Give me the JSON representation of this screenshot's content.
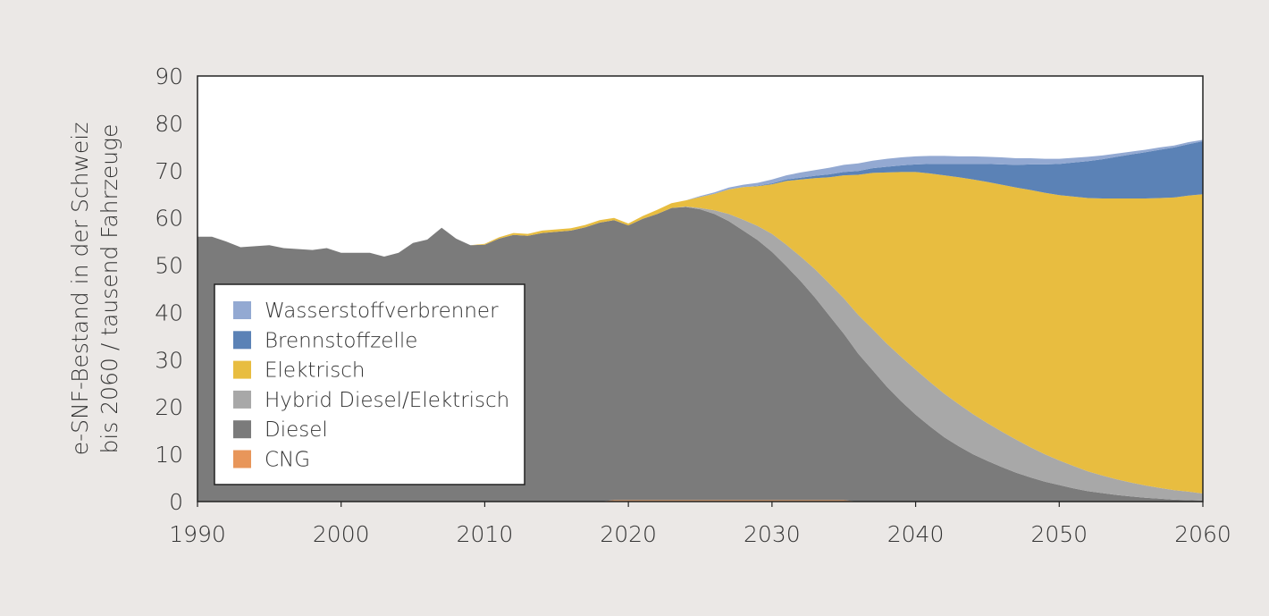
{
  "chart_data": {
    "type": "area",
    "stacked": true,
    "ylabel_line1": "e-SNF-Bestand in der Schweiz",
    "ylabel_line2": "bis 2060 / tausend Fahrzeuge",
    "xlim": [
      1990,
      2060
    ],
    "ylim": [
      0,
      90
    ],
    "xticks": [
      1990,
      2000,
      2010,
      2020,
      2030,
      2040,
      2050,
      2060
    ],
    "yticks": [
      0,
      10,
      20,
      30,
      40,
      50,
      60,
      70,
      80,
      90
    ],
    "grid": false,
    "legend_position": "bottom-left",
    "x": [
      1990,
      1991,
      1992,
      1993,
      1995,
      1996,
      1998,
      1999,
      2000,
      2002,
      2003,
      2004,
      2005,
      2006,
      2007,
      2008,
      2009,
      2010,
      2011,
      2012,
      2013,
      2014,
      2016,
      2017,
      2018,
      2019,
      2020,
      2021,
      2022,
      2023,
      2024,
      2025,
      2026,
      2027,
      2028,
      2029,
      2030,
      2031,
      2032,
      2033,
      2034,
      2035,
      2036,
      2037,
      2038,
      2039,
      2040,
      2041,
      2042,
      2043,
      2044,
      2045,
      2046,
      2047,
      2048,
      2049,
      2050,
      2051,
      2052,
      2053,
      2054,
      2055,
      2056,
      2057,
      2058,
      2059,
      2060
    ],
    "series": [
      {
        "name": "CNG",
        "color": "#e8965a",
        "values": [
          0,
          0,
          0,
          0,
          0,
          0,
          0,
          0,
          0,
          0,
          0,
          0,
          0,
          0,
          0,
          0,
          0,
          0,
          0,
          0,
          0,
          0,
          0,
          0,
          0,
          0.3,
          0.3,
          0.3,
          0.3,
          0.3,
          0.3,
          0.3,
          0.3,
          0.3,
          0.3,
          0.3,
          0.3,
          0.3,
          0.3,
          0.3,
          0.3,
          0.3,
          0,
          0,
          0,
          0,
          0,
          0,
          0,
          0,
          0,
          0,
          0,
          0,
          0,
          0,
          0,
          0,
          0,
          0,
          0,
          0,
          0,
          0,
          0,
          0,
          0
        ]
      },
      {
        "name": "Diesel",
        "color": "#7b7b7b",
        "values": [
          56,
          56,
          55,
          53.8,
          54.2,
          53.6,
          53.2,
          53.6,
          52.6,
          52.6,
          51.8,
          52.6,
          54.7,
          55.4,
          57.9,
          55.6,
          54.2,
          54.3,
          55.6,
          56.4,
          56.2,
          56.8,
          57.3,
          58.0,
          59.0,
          59.2,
          58.1,
          59.5,
          60.5,
          61.8,
          62.0,
          61.5,
          60.5,
          59.0,
          57.0,
          55.0,
          52.5,
          49.5,
          46.3,
          42.8,
          39.0,
          35.2,
          31.3,
          27.8,
          24.3,
          21.2,
          18.4,
          15.9,
          13.6,
          11.7,
          10.0,
          8.6,
          7.3,
          6.1,
          5.1,
          4.2,
          3.5,
          2.8,
          2.2,
          1.8,
          1.4,
          1.1,
          0.8,
          0.6,
          0.4,
          0.3,
          0.2
        ]
      },
      {
        "name": "Hybrid Diesel/Elektrisch",
        "color": "#a8a8a8",
        "values": [
          0,
          0,
          0,
          0,
          0,
          0,
          0,
          0,
          0,
          0,
          0,
          0,
          0,
          0,
          0,
          0,
          0,
          0,
          0,
          0,
          0,
          0,
          0,
          0,
          0,
          0,
          0,
          0,
          0,
          0,
          0.1,
          0.3,
          0.8,
          1.5,
          2.3,
          3.0,
          3.8,
          4.5,
          5.2,
          6.0,
          6.8,
          7.5,
          8.2,
          8.7,
          9.1,
          9.4,
          9.5,
          9.4,
          9.2,
          8.9,
          8.5,
          8.0,
          7.5,
          7.0,
          6.4,
          5.8,
          5.2,
          4.7,
          4.2,
          3.7,
          3.3,
          2.9,
          2.6,
          2.3,
          2.0,
          1.8,
          1.5
        ]
      },
      {
        "name": "Elektrisch",
        "color": "#e8bd40",
        "values": [
          0,
          0,
          0,
          0,
          0,
          0,
          0,
          0,
          0,
          0,
          0,
          0,
          0,
          0,
          0,
          0,
          0,
          0.2,
          0.3,
          0.4,
          0.4,
          0.5,
          0.5,
          0.5,
          0.5,
          0.5,
          0.4,
          0.6,
          0.9,
          1.0,
          1.3,
          2.3,
          3.5,
          5.2,
          6.9,
          8.4,
          10.5,
          13.5,
          16.3,
          19.3,
          22.5,
          26.0,
          29.6,
          33.0,
          36.2,
          39.1,
          41.8,
          44.1,
          46.2,
          48.0,
          49.6,
          51.0,
          52.2,
          53.3,
          54.4,
          55.3,
          56.1,
          57.0,
          57.8,
          58.6,
          59.4,
          60.1,
          60.7,
          61.3,
          61.9,
          62.6,
          63.3
        ]
      },
      {
        "name": "Brennstoffzelle",
        "color": "#5b82b6",
        "values": [
          0,
          0,
          0,
          0,
          0,
          0,
          0,
          0,
          0,
          0,
          0,
          0,
          0,
          0,
          0,
          0,
          0,
          0,
          0,
          0,
          0,
          0,
          0,
          0,
          0,
          0,
          0,
          0,
          0,
          0,
          0,
          0,
          0,
          0,
          0,
          0.1,
          0.2,
          0.3,
          0.4,
          0.5,
          0.6,
          0.7,
          0.8,
          1.0,
          1.2,
          1.4,
          1.6,
          2.0,
          2.4,
          2.8,
          3.3,
          3.8,
          4.3,
          4.8,
          5.4,
          6.0,
          6.6,
          7.2,
          7.8,
          8.3,
          8.8,
          9.3,
          9.8,
          10.2,
          10.6,
          10.9,
          11.2
        ]
      },
      {
        "name": "Wasserstoffverbrenner",
        "color": "#93a9d2",
        "values": [
          0,
          0,
          0,
          0,
          0,
          0,
          0,
          0,
          0,
          0,
          0,
          0,
          0,
          0,
          0,
          0,
          0,
          0,
          0,
          0,
          0,
          0,
          0,
          0,
          0,
          0,
          0,
          0,
          0,
          0,
          0,
          0.2,
          0.3,
          0.4,
          0.5,
          0.6,
          0.8,
          0.9,
          1.1,
          1.2,
          1.4,
          1.5,
          1.6,
          1.6,
          1.7,
          1.7,
          1.7,
          1.7,
          1.7,
          1.6,
          1.6,
          1.5,
          1.5,
          1.4,
          1.3,
          1.2,
          1.1,
          1.0,
          0.9,
          0.8,
          0.7,
          0.6,
          0.5,
          0.5,
          0.4,
          0.4,
          0.3
        ]
      }
    ],
    "legend": [
      {
        "name": "Wasserstoffverbrenner",
        "color": "#93a9d2"
      },
      {
        "name": "Brennstoffzelle",
        "color": "#5b82b6"
      },
      {
        "name": "Elektrisch",
        "color": "#e8bd40"
      },
      {
        "name": "Hybrid Diesel/Elektrisch",
        "color": "#a8a8a8"
      },
      {
        "name": "Diesel",
        "color": "#7b7b7b"
      },
      {
        "name": "CNG",
        "color": "#e8965a"
      }
    ]
  }
}
